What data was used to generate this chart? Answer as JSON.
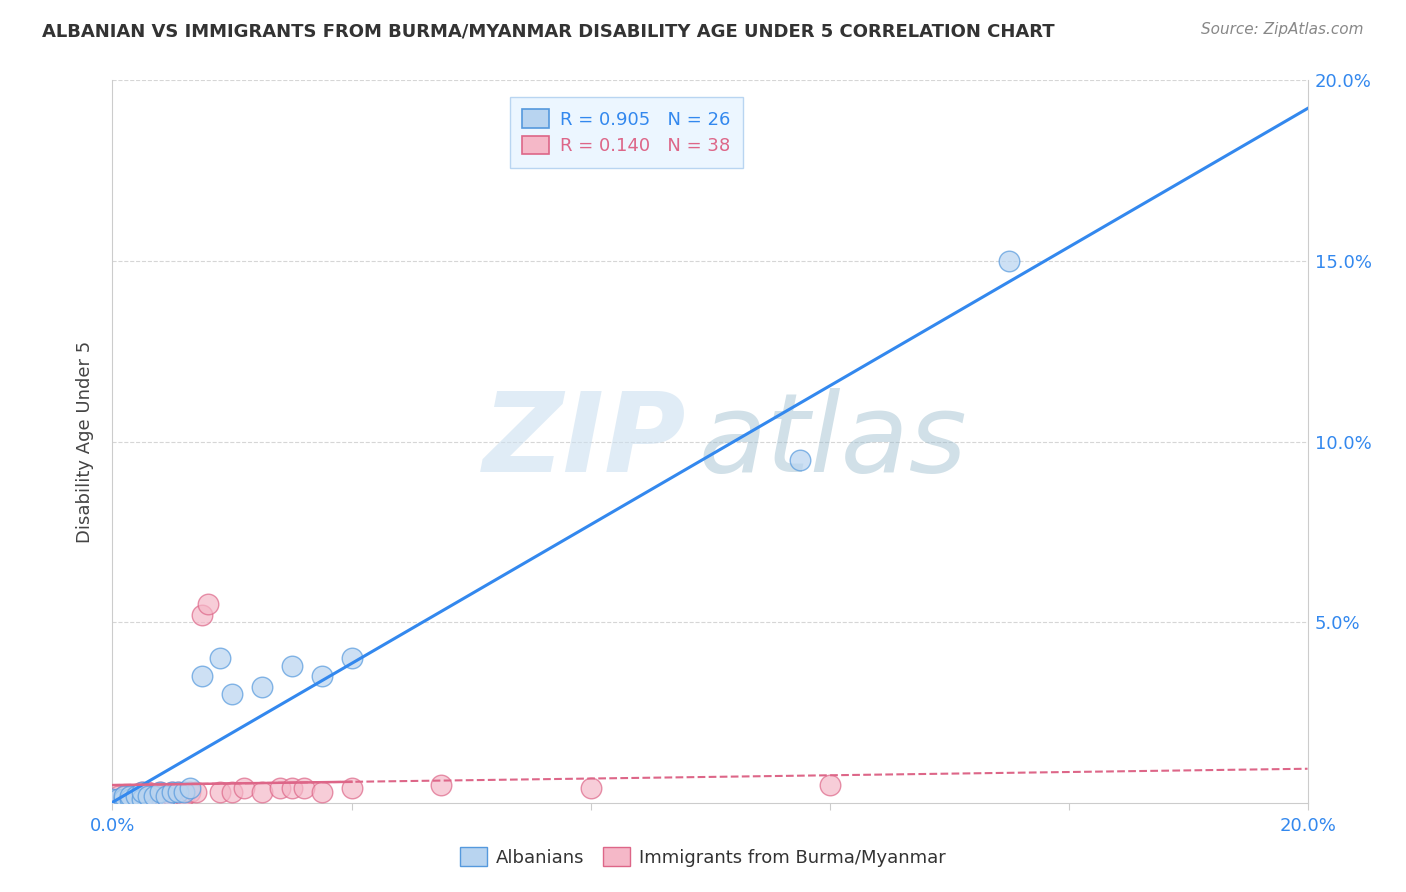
{
  "title": "ALBANIAN VS IMMIGRANTS FROM BURMA/MYANMAR DISABILITY AGE UNDER 5 CORRELATION CHART",
  "source": "Source: ZipAtlas.com",
  "ylabel": "Disability Age Under 5",
  "xlim": [
    0.0,
    0.2
  ],
  "ylim": [
    0.0,
    0.2
  ],
  "series": [
    {
      "label": "Albanians",
      "R": 0.905,
      "N": 26,
      "color_fill": "#b8d4f0",
      "color_edge": "#5599dd",
      "color_line": "#3388ee",
      "albanian_x": [
        0.0,
        0.001,
        0.002,
        0.002,
        0.003,
        0.003,
        0.004,
        0.005,
        0.005,
        0.006,
        0.007,
        0.008,
        0.009,
        0.01,
        0.011,
        0.012,
        0.013,
        0.015,
        0.018,
        0.02,
        0.025,
        0.03,
        0.035,
        0.04,
        0.115,
        0.15
      ],
      "albanian_y": [
        0.001,
        0.001,
        0.001,
        0.002,
        0.001,
        0.002,
        0.002,
        0.001,
        0.003,
        0.002,
        0.002,
        0.003,
        0.002,
        0.003,
        0.003,
        0.003,
        0.004,
        0.035,
        0.04,
        0.03,
        0.032,
        0.038,
        0.035,
        0.04,
        0.095,
        0.15
      ]
    },
    {
      "label": "Immigrants from Burma/Myanmar",
      "R": 0.14,
      "N": 38,
      "color_fill": "#f5b8c8",
      "color_edge": "#dd6688",
      "color_line": "#dd6688",
      "burma_x": [
        0.0,
        0.001,
        0.001,
        0.002,
        0.002,
        0.003,
        0.003,
        0.004,
        0.004,
        0.005,
        0.005,
        0.005,
        0.006,
        0.006,
        0.007,
        0.008,
        0.008,
        0.009,
        0.01,
        0.01,
        0.011,
        0.012,
        0.013,
        0.014,
        0.015,
        0.016,
        0.018,
        0.02,
        0.022,
        0.025,
        0.028,
        0.03,
        0.032,
        0.035,
        0.04,
        0.055,
        0.08,
        0.12
      ],
      "burma_y": [
        0.001,
        0.001,
        0.002,
        0.001,
        0.002,
        0.001,
        0.002,
        0.001,
        0.002,
        0.001,
        0.002,
        0.003,
        0.002,
        0.003,
        0.002,
        0.002,
        0.003,
        0.002,
        0.002,
        0.003,
        0.003,
        0.002,
        0.003,
        0.003,
        0.052,
        0.055,
        0.003,
        0.003,
        0.004,
        0.003,
        0.004,
        0.004,
        0.004,
        0.003,
        0.004,
        0.005,
        0.004,
        0.005
      ]
    }
  ],
  "legend_box_color": "#e8f4ff",
  "legend_border_color": "#aaccee",
  "bg_color": "#ffffff",
  "grid_color": "#cccccc",
  "title_color": "#333333",
  "source_color": "#888888",
  "axis_label_color": "#444444",
  "tick_color": "#3388ee",
  "ytick_labels_right": [
    "20.0%",
    "15.0%",
    "10.0%",
    "5.0%"
  ],
  "ytick_vals_right": [
    0.2,
    0.15,
    0.1,
    0.05
  ]
}
